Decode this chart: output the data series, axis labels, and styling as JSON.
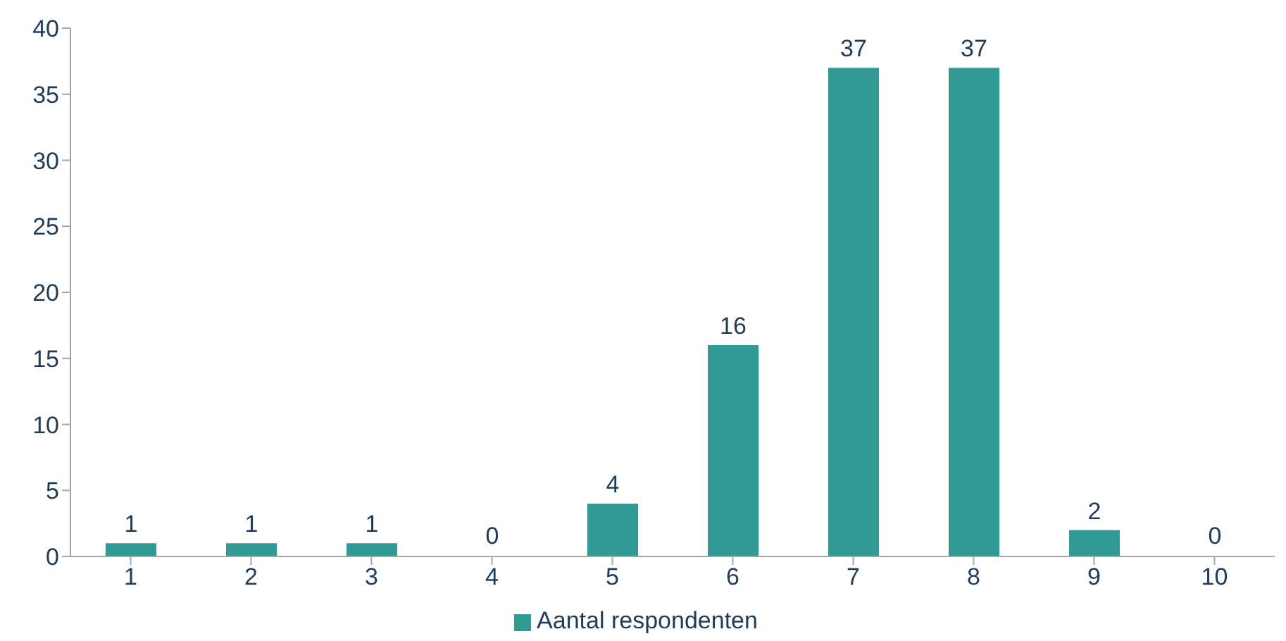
{
  "chart_data": {
    "type": "bar",
    "categories": [
      "1",
      "2",
      "3",
      "4",
      "5",
      "6",
      "7",
      "8",
      "9",
      "10"
    ],
    "series": [
      {
        "name": "Aantal respondenten",
        "color": "#329a94",
        "values": [
          1,
          1,
          1,
          0,
          4,
          16,
          37,
          37,
          2,
          0
        ]
      }
    ],
    "ylim": [
      0,
      40
    ],
    "yticks": [
      0,
      5,
      10,
      15,
      20,
      25,
      30,
      35,
      40
    ],
    "grid": false,
    "legend": "bottom",
    "data_labels": true
  }
}
